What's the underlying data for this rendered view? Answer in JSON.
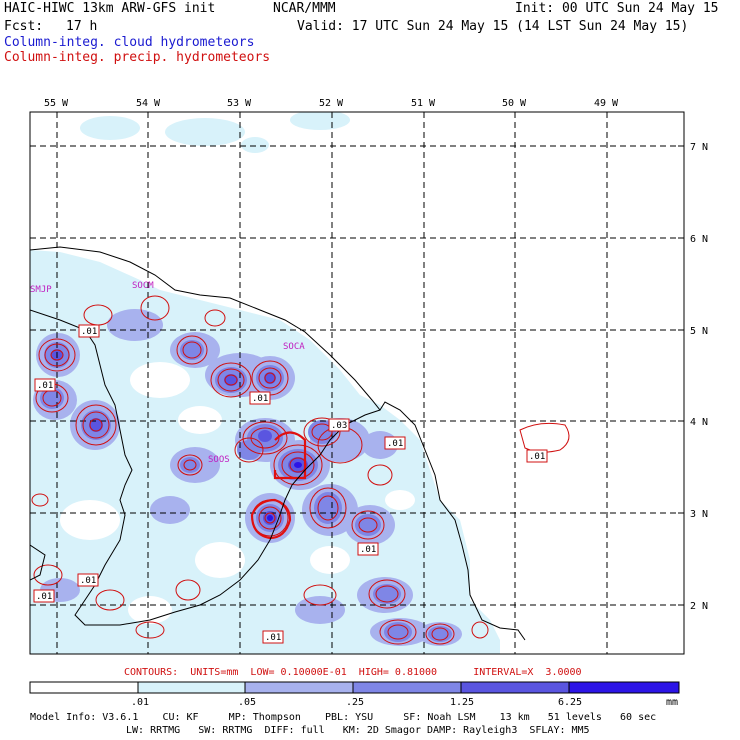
{
  "header": {
    "line1_left": "HAIC-HIWC 13km ARW-GFS init",
    "line1_mid": "NCAR/MMM",
    "line1_right": "Init: 00 UTC Sun 24 May 15",
    "line2_left": "Fcst:",
    "line2_fcst": "17 h",
    "line2_right": "Valid: 17 UTC Sun 24 May 15 (14 LST Sun 24 May 15)",
    "line3": "Column-integ. cloud hydrometeors",
    "line4": "Column-integ. precip. hydrometeors"
  },
  "colors": {
    "cloud_label": "#1a1ad0",
    "precip_label": "#d01010",
    "coast": "#000000",
    "grid": "#000000",
    "precip_contour": "#d01010",
    "bin_1": "#ffffff",
    "bin_2": "#d8f2fa",
    "bin_3": "#a8b2ee",
    "bin_4": "#7f86e6",
    "bin_5": "#5a55e0",
    "bin_6": "#2c14e6"
  },
  "map": {
    "lon_labels": [
      "55 W",
      "54 W",
      "53 W",
      "52 W",
      "51 W",
      "50 W",
      "49 W"
    ],
    "lat_labels": [
      "7 N",
      "6 N",
      "5 N",
      "4 N",
      "3 N",
      "2 N"
    ],
    "stations": [
      "SMJP",
      "SOCM",
      "SOCA",
      "SOOS"
    ],
    "contour_labels": [
      ".01",
      ".01",
      ".01",
      ".03",
      ".01",
      ".01",
      ".01",
      ".01",
      ".01",
      ".01"
    ]
  },
  "contours_info": {
    "text": "CONTOURS:  UNITS=mm  LOW= 0.10000E-01  HIGH= 0.81000      INTERVAL=X  3.0000"
  },
  "colorbar": {
    "tick_labels": [
      ".01",
      ".05",
      ".25",
      "1.25",
      "6.25"
    ],
    "units": "mm"
  },
  "footer": {
    "line1": "Model Info: V3.6.1    CU: KF     MP: Thompson    PBL: YSU     SF: Noah LSM    13 km   51 levels   60 sec",
    "line2": "LW: RRTMG   SW: RRTMG  DIFF: full   KM: 2D Smagor DAMP: Rayleigh3  SFLAY: MM5"
  }
}
